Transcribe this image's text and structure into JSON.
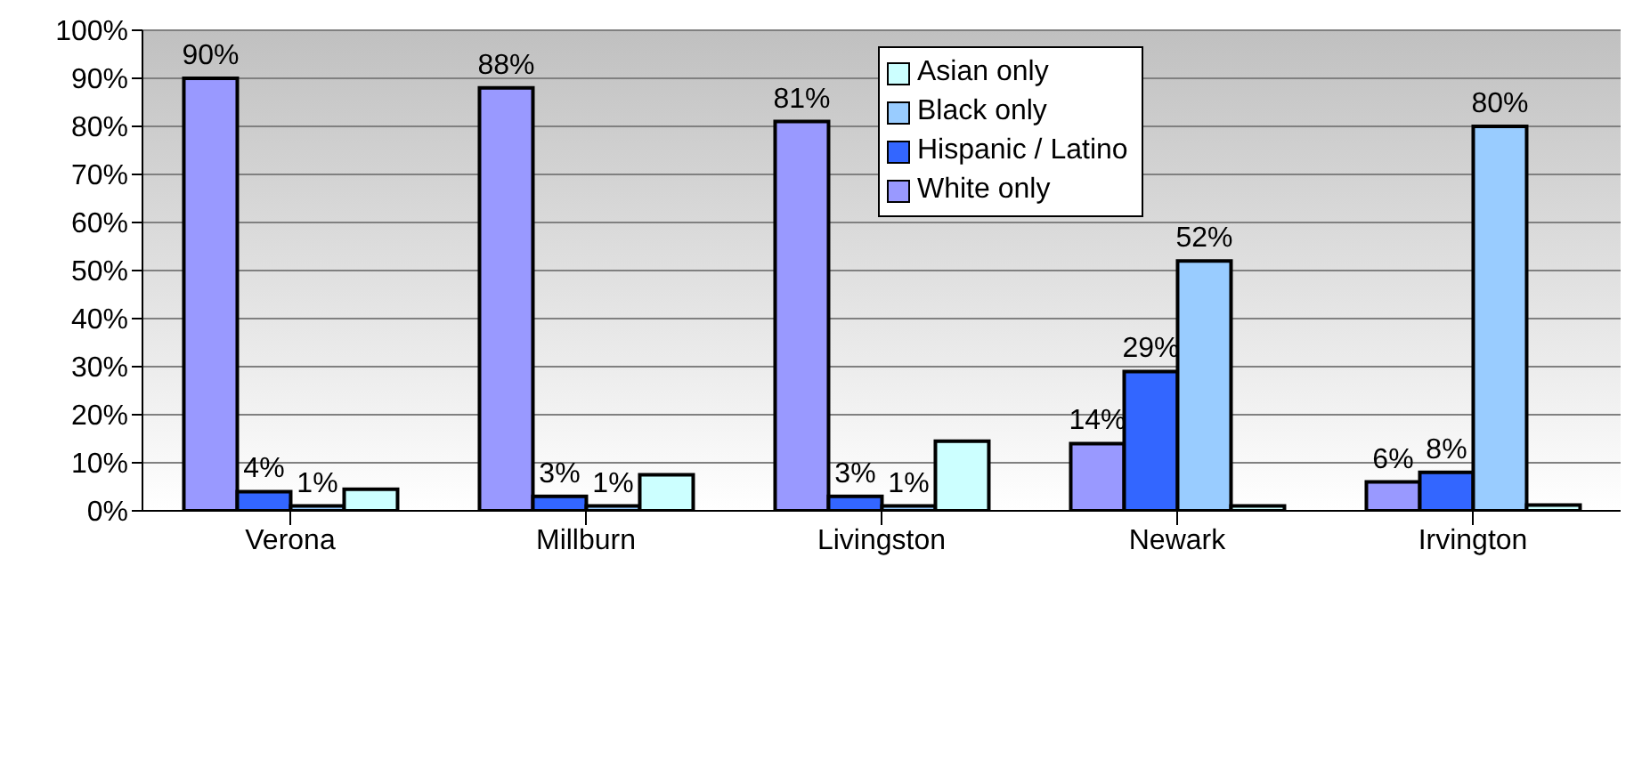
{
  "chart_data": {
    "type": "bar",
    "categories": [
      "Verona",
      "Millburn",
      "Livingston",
      "Newark",
      "Irvington"
    ],
    "series": [
      {
        "name": "White only",
        "color": "#9999ff",
        "values": [
          90,
          88,
          81,
          14,
          6
        ],
        "value_labels": [
          "90%",
          "88%",
          "81%",
          "14%",
          "6%"
        ]
      },
      {
        "name": "Hispanic / Latino",
        "color": "#3366ff",
        "values": [
          4,
          3,
          3,
          29,
          8
        ],
        "value_labels": [
          "4%",
          "3%",
          "3%",
          "29%",
          "8%"
        ]
      },
      {
        "name": "Black only",
        "color": "#99ccff",
        "values": [
          1,
          1,
          1,
          52,
          80
        ],
        "value_labels": [
          "1%",
          "1%",
          "1%",
          "52%",
          "80%"
        ]
      },
      {
        "name": "Asian only",
        "color": "#ccffff",
        "values": [
          4.5,
          7.5,
          14.5,
          1,
          1.2
        ],
        "value_labels": [
          null,
          null,
          null,
          null,
          null
        ]
      }
    ],
    "ylim": [
      0,
      100
    ],
    "yticks": [
      {
        "value": 0,
        "label": "0%"
      },
      {
        "value": 10,
        "label": "10%"
      },
      {
        "value": 20,
        "label": "20%"
      },
      {
        "value": 30,
        "label": "30%"
      },
      {
        "value": 40,
        "label": "40%"
      },
      {
        "value": 50,
        "label": "50%"
      },
      {
        "value": 60,
        "label": "60%"
      },
      {
        "value": 70,
        "label": "70%"
      },
      {
        "value": 80,
        "label": "80%"
      },
      {
        "value": 90,
        "label": "90%"
      },
      {
        "value": 100,
        "label": "100%"
      }
    ],
    "grid": "y",
    "legend": "top"
  }
}
